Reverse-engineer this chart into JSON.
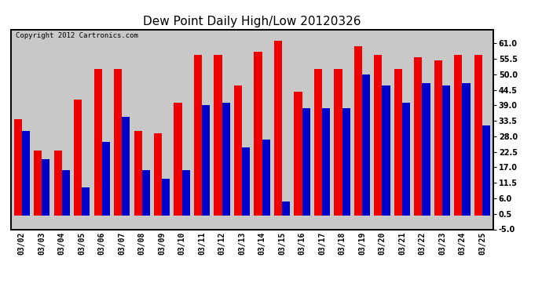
{
  "title": "Dew Point Daily High/Low 20120326",
  "copyright": "Copyright 2012 Cartronics.com",
  "dates": [
    "03/02",
    "03/03",
    "03/04",
    "03/05",
    "03/06",
    "03/07",
    "03/08",
    "03/09",
    "03/10",
    "03/11",
    "03/12",
    "03/13",
    "03/14",
    "03/15",
    "03/16",
    "03/17",
    "03/18",
    "03/19",
    "03/20",
    "03/21",
    "03/22",
    "03/23",
    "03/24",
    "03/25"
  ],
  "highs": [
    34,
    23,
    23,
    41,
    52,
    52,
    30,
    29,
    40,
    57,
    57,
    46,
    58,
    62,
    44,
    52,
    52,
    60,
    57,
    52,
    56,
    55,
    57,
    57
  ],
  "lows": [
    30,
    20,
    16,
    10,
    26,
    35,
    16,
    13,
    16,
    39,
    40,
    24,
    27,
    5,
    38,
    38,
    38,
    50,
    46,
    40,
    47,
    46,
    47,
    32
  ],
  "high_color": "#ee0000",
  "low_color": "#0000cc",
  "background_color": "#ffffff",
  "plot_bg_color": "#c8c8c8",
  "grid_color": "#ffffff",
  "ylim": [
    -5,
    66
  ],
  "yticks": [
    -5.0,
    0.5,
    6.0,
    11.5,
    17.0,
    22.5,
    28.0,
    33.5,
    39.0,
    44.5,
    50.0,
    55.5,
    61.0
  ],
  "title_fontsize": 11,
  "tick_fontsize": 7,
  "bar_width": 0.4,
  "figwidth": 6.9,
  "figheight": 3.75,
  "dpi": 100
}
